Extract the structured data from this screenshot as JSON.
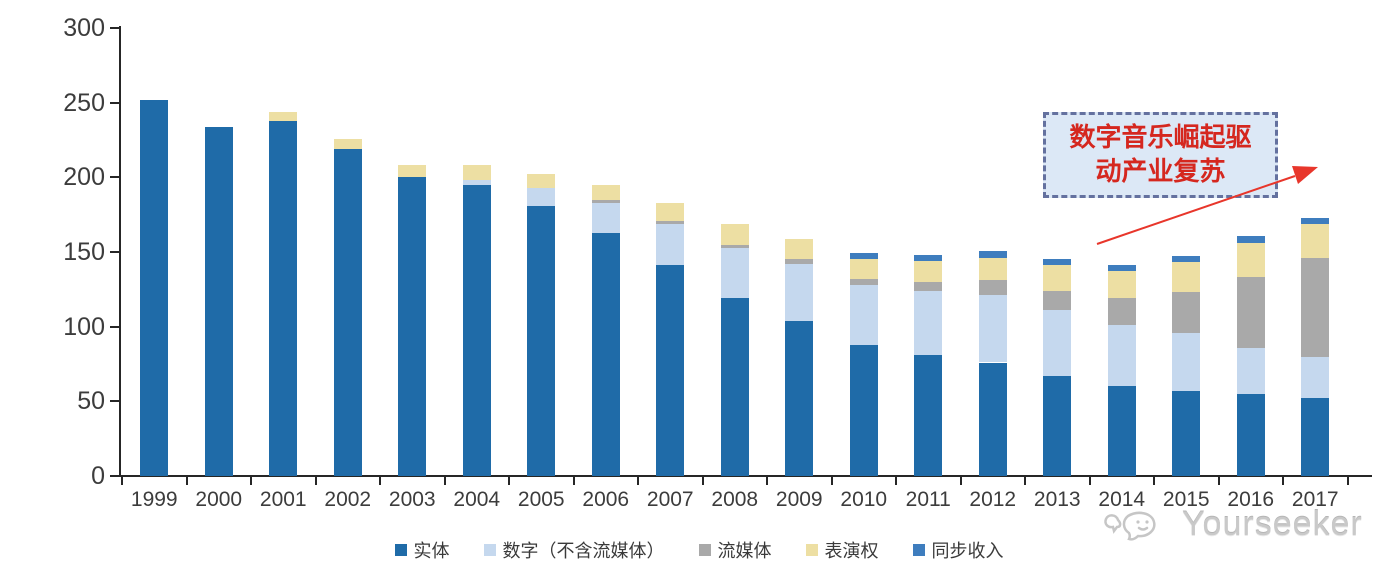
{
  "chart_data": {
    "type": "bar",
    "stacked": true,
    "title": "",
    "xlabel": "",
    "ylabel": "",
    "grid": false,
    "legend_position": "bottom",
    "ylim": [
      0,
      300
    ],
    "yticks": [
      0,
      50,
      100,
      150,
      200,
      250,
      300
    ],
    "categories": [
      "1999",
      "2000",
      "2001",
      "2002",
      "2003",
      "2004",
      "2005",
      "2006",
      "2007",
      "2008",
      "2009",
      "2010",
      "2011",
      "2012",
      "2013",
      "2014",
      "2015",
      "2016",
      "2017"
    ],
    "series": [
      {
        "name": "实体",
        "color": "#1F6BA8",
        "values": [
          252,
          234,
          238,
          219,
          200,
          195,
          181,
          163,
          141,
          119,
          104,
          88,
          81,
          76,
          67,
          60,
          57,
          55,
          52
        ]
      },
      {
        "name": "数字（不含流媒体）",
        "color": "#C5D8EE",
        "values": [
          0,
          0,
          0,
          0,
          0,
          3,
          12,
          20,
          28,
          34,
          38,
          40,
          43,
          45,
          44,
          41,
          39,
          31,
          28
        ]
      },
      {
        "name": "流媒体",
        "color": "#A9A9A9",
        "values": [
          0,
          0,
          0,
          0,
          0,
          0,
          0,
          2,
          2,
          2,
          3,
          4,
          6,
          10,
          13,
          18,
          27,
          47,
          66
        ]
      },
      {
        "name": "表演权",
        "color": "#EDDFA3",
        "values": [
          0,
          0,
          6,
          7,
          8,
          10,
          9,
          10,
          12,
          14,
          14,
          13,
          14,
          15,
          17,
          18,
          20,
          23,
          23
        ]
      },
      {
        "name": "同步收入",
        "color": "#3E7DBE",
        "values": [
          0,
          0,
          0,
          0,
          0,
          0,
          0,
          0,
          0,
          0,
          0,
          4,
          4,
          5,
          4,
          4,
          4,
          5,
          4
        ]
      }
    ]
  },
  "annotation": {
    "lines": [
      "数字音乐崛起驱",
      "动产业复苏"
    ],
    "text_color": "#D5271F",
    "fill_color": "#DCE8F6",
    "border_color": "#64719F",
    "arrow_color": "#E8362B"
  },
  "watermark": {
    "text": "Yourseeker",
    "logo": "yourseeker-bubbles-icon",
    "color": "#C9C9C9"
  },
  "axis": {
    "line_color": "#262626",
    "label_color": "#3C3C3C"
  }
}
